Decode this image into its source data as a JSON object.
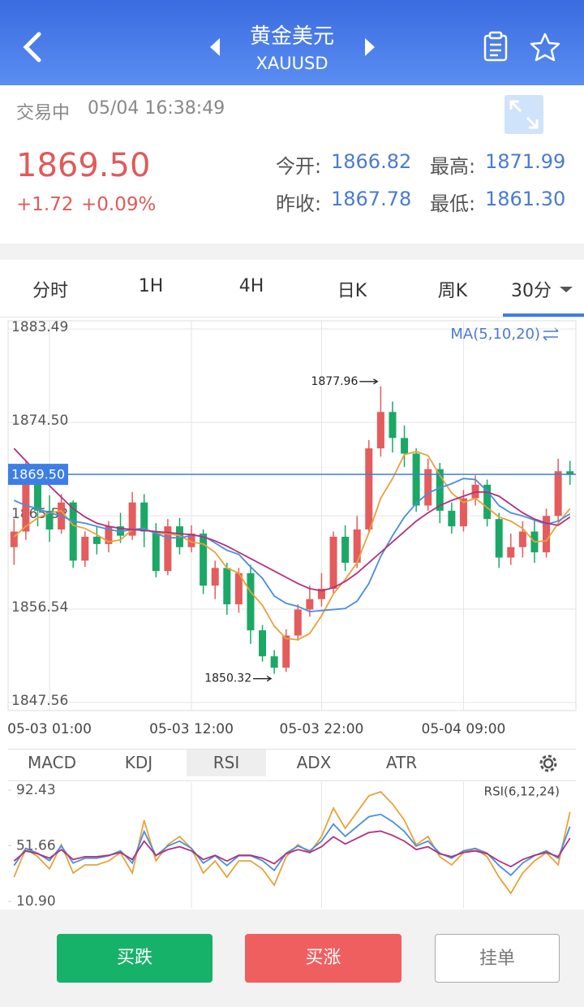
{
  "header": {
    "title": "黄金美元",
    "symbol": "XAUUSD"
  },
  "quote": {
    "status": "交易中",
    "time": "05/04 16:38:49",
    "price": "1869.50",
    "change": "+1.72",
    "change_pct": "+0.09%",
    "open_label": "今开:",
    "open": "1866.82",
    "high_label": "最高:",
    "high": "1871.99",
    "prev_close_label": "昨收:",
    "prev_close": "1867.78",
    "low_label": "最低:",
    "low": "1861.30"
  },
  "period_tabs": [
    "分时",
    "1H",
    "4H",
    "日K",
    "周K",
    "30分"
  ],
  "indicator_tabs": [
    "MACD",
    "KDJ",
    "RSI",
    "ADX",
    "ATR"
  ],
  "buttons": {
    "sell": "买跌",
    "buy": "买涨",
    "order": "挂单"
  },
  "chart_data": [
    {
      "type": "candlestick",
      "categories": [
        null,
        null,
        null,
        "05-03 01:00",
        null,
        null,
        null,
        null,
        null,
        null,
        null,
        null,
        null,
        null,
        null,
        "05-03 12:00",
        null,
        null,
        null,
        null,
        null,
        null,
        null,
        null,
        null,
        null,
        "05-03 22:00",
        null,
        null,
        null,
        null,
        null,
        null,
        null,
        null,
        null,
        null,
        null,
        "05-04 09:00",
        null,
        null,
        null,
        null,
        null,
        null,
        null,
        null,
        null
      ],
      "open": [
        1862.5,
        1864.0,
        1869.0,
        1866.0,
        1864.2,
        1866.8,
        1861.2,
        1863.5,
        1862.8,
        1864.5,
        1863.6,
        1866.8,
        1864.0,
        1860.2,
        1864.5,
        1862.5,
        1863.8,
        1858.8,
        1860.5,
        1857.0,
        1860.0,
        1854.5,
        1852.0,
        1850.9,
        1854.0,
        1856.5,
        1857.5,
        1858.5,
        1863.5,
        1861.0,
        1864.2,
        1872.0,
        1875.5,
        1873.0,
        1871.5,
        1866.5,
        1870.0,
        1866.0,
        1864.5,
        1867.2,
        1868.5,
        1865.2,
        1861.5,
        1862.5,
        1864.0,
        1862.0,
        1865.5,
        1869.8
      ],
      "high": [
        1865.2,
        1870.8,
        1869.8,
        1867.5,
        1867.6,
        1867.0,
        1864.0,
        1864.5,
        1865.0,
        1865.8,
        1867.8,
        1867.6,
        1864.8,
        1865.2,
        1865.3,
        1864.6,
        1864.2,
        1861.2,
        1861.0,
        1860.5,
        1860.8,
        1855.0,
        1852.6,
        1854.6,
        1857.0,
        1858.8,
        1860.0,
        1864.0,
        1864.6,
        1865.5,
        1872.8,
        1877.96,
        1876.5,
        1874.2,
        1872.0,
        1871.0,
        1870.6,
        1866.8,
        1868.0,
        1869.4,
        1869.0,
        1865.8,
        1863.8,
        1865.0,
        1865.2,
        1866.2,
        1871.0,
        1870.8
      ],
      "low": [
        1860.8,
        1863.2,
        1864.5,
        1863.0,
        1863.8,
        1860.5,
        1860.6,
        1861.8,
        1862.0,
        1862.9,
        1863.2,
        1862.5,
        1859.6,
        1859.8,
        1861.8,
        1862.0,
        1858.0,
        1857.5,
        1856.0,
        1856.2,
        1853.2,
        1851.5,
        1850.32,
        1850.5,
        1853.5,
        1855.8,
        1856.8,
        1858.0,
        1860.2,
        1860.5,
        1863.8,
        1871.2,
        1871.6,
        1870.2,
        1865.9,
        1866.0,
        1864.8,
        1863.8,
        1864.0,
        1866.5,
        1864.5,
        1860.5,
        1860.8,
        1861.5,
        1861.0,
        1861.5,
        1865.0,
        1868.5
      ],
      "close": [
        1864.0,
        1869.0,
        1866.0,
        1864.2,
        1866.8,
        1861.2,
        1863.5,
        1862.8,
        1864.5,
        1863.6,
        1866.8,
        1864.0,
        1860.2,
        1864.5,
        1862.5,
        1863.8,
        1858.8,
        1860.5,
        1857.0,
        1860.0,
        1854.5,
        1852.0,
        1850.9,
        1854.0,
        1856.5,
        1857.5,
        1858.5,
        1863.5,
        1861.0,
        1864.2,
        1872.0,
        1875.5,
        1873.0,
        1871.5,
        1866.5,
        1870.0,
        1866.0,
        1864.5,
        1867.2,
        1868.5,
        1865.2,
        1861.5,
        1862.5,
        1864.0,
        1862.0,
        1865.5,
        1869.8,
        1869.5
      ],
      "up_color": "#e45c5c",
      "down_color": "#1ba866",
      "series": [
        {
          "color": "#e8a23a",
          "values": [
            1863.5,
            1864.5,
            1865.3,
            1865.8,
            1866.0,
            1864.6,
            1864.3,
            1863.7,
            1863.0,
            1863.2,
            1864.2,
            1864.3,
            1863.8,
            1863.8,
            1863.6,
            1863.0,
            1862.8,
            1862.0,
            1860.5,
            1860.0,
            1858.2,
            1856.9,
            1854.9,
            1853.7,
            1853.6,
            1854.2,
            1855.9,
            1858.0,
            1859.4,
            1861.0,
            1863.9,
            1867.2,
            1869.1,
            1871.4,
            1871.7,
            1871.3,
            1869.4,
            1867.7,
            1866.8,
            1867.2,
            1866.3,
            1865.4,
            1865.0,
            1864.3,
            1863.0,
            1863.1,
            1864.8,
            1866.2
          ]
        },
        {
          "color": "#4a8ee0",
          "values": [
            1867.0,
            1866.5,
            1866.2,
            1865.8,
            1865.5,
            1865.0,
            1864.8,
            1864.5,
            1864.2,
            1864.0,
            1864.2,
            1864.3,
            1863.8,
            1863.4,
            1863.4,
            1863.6,
            1863.6,
            1862.9,
            1862.2,
            1861.8,
            1860.6,
            1859.5,
            1857.8,
            1857.1,
            1856.8,
            1856.3,
            1856.4,
            1856.5,
            1856.6,
            1857.3,
            1859.0,
            1861.6,
            1863.6,
            1865.4,
            1866.7,
            1867.7,
            1868.2,
            1868.6,
            1869.1,
            1869.0,
            1867.9,
            1866.5,
            1865.8,
            1865.5,
            1865.1,
            1864.7,
            1865.0,
            1865.7
          ]
        },
        {
          "color": "#b2307e",
          "values": [
            1872.0,
            1870.8,
            1869.6,
            1868.4,
            1867.3,
            1866.2,
            1865.4,
            1864.8,
            1864.5,
            1864.3,
            1864.2,
            1864.1,
            1864.0,
            1863.9,
            1863.8,
            1863.7,
            1863.5,
            1863.1,
            1862.6,
            1862.0,
            1861.4,
            1860.8,
            1860.2,
            1859.6,
            1859.0,
            1858.5,
            1858.3,
            1858.6,
            1859.2,
            1860.0,
            1861.0,
            1862.0,
            1863.0,
            1864.0,
            1865.0,
            1865.8,
            1866.5,
            1867.0,
            1867.4,
            1867.8,
            1867.8,
            1867.4,
            1866.6,
            1865.8,
            1865.2,
            1864.8,
            1864.6,
            1865.4
          ]
        }
      ],
      "indicator_label": "MA(5,10,20)",
      "last_price": {
        "value": 1869.5,
        "label": "1869.50"
      },
      "last_price_color": "#3d7ee6",
      "ylim": [
        1846.78,
        1884.27
      ],
      "yticks": [
        1883.49,
        {
          "value": 1874.5,
          "label": "1874.50"
        },
        1865.52,
        1856.54,
        1847.56
      ],
      "grid": true
    },
    {
      "type": "line",
      "series": [
        {
          "color": "#e8a23a",
          "values": [
            28.7,
            49.6,
            43.6,
            34.7,
            52.5,
            31.7,
            37.7,
            37.7,
            40.6,
            46.6,
            31.7,
            70.4,
            40.6,
            52.5,
            58.5,
            49.6,
            31.7,
            40.6,
            28.7,
            40.6,
            40.6,
            34.7,
            22.8,
            43.6,
            52.5,
            46.6,
            58.5,
            79.3,
            64.4,
            76.4,
            88.3,
            91.2,
            82.3,
            70.4,
            52.5,
            58.5,
            43.6,
            37.7,
            46.6,
            49.6,
            43.6,
            28.7,
            16.8,
            31.7,
            40.6,
            46.6,
            37.7,
            76.4
          ]
        },
        {
          "color": "#4a8ee0",
          "values": [
            37.2,
            49.8,
            46.2,
            40.8,
            51.5,
            39.0,
            42.6,
            42.6,
            44.4,
            48.0,
            39.0,
            62.2,
            44.4,
            51.5,
            55.1,
            49.8,
            39.0,
            44.4,
            37.2,
            44.4,
            44.4,
            40.8,
            33.7,
            46.2,
            51.5,
            48.0,
            55.1,
            67.6,
            58.6,
            65.8,
            73.0,
            74.7,
            69.4,
            62.2,
            51.5,
            55.1,
            46.2,
            42.6,
            48.0,
            49.8,
            46.2,
            37.2,
            30.1,
            39.0,
            44.4,
            48.0,
            42.6,
            65.8
          ]
        },
        {
          "color": "#b2307e",
          "values": [
            40.5,
            47.9,
            45.8,
            42.6,
            48.9,
            41.6,
            43.7,
            43.7,
            44.7,
            46.8,
            41.6,
            55.1,
            44.7,
            48.9,
            51.0,
            47.9,
            41.6,
            44.7,
            40.5,
            44.7,
            44.7,
            42.6,
            38.5,
            45.8,
            48.9,
            46.8,
            51.0,
            58.3,
            53.0,
            57.2,
            61.4,
            62.4,
            59.3,
            55.1,
            48.9,
            51.0,
            45.8,
            43.7,
            46.8,
            47.9,
            45.8,
            40.5,
            36.4,
            41.6,
            44.7,
            46.8,
            43.7,
            57.2
          ]
        }
      ],
      "indicator_label": "RSI(6,12,24)",
      "ylim": [
        6.14,
        98.38
      ],
      "yticks": [
        92.43,
        51.66,
        {
          "value": 10.9,
          "label": "10.90"
        }
      ]
    }
  ]
}
